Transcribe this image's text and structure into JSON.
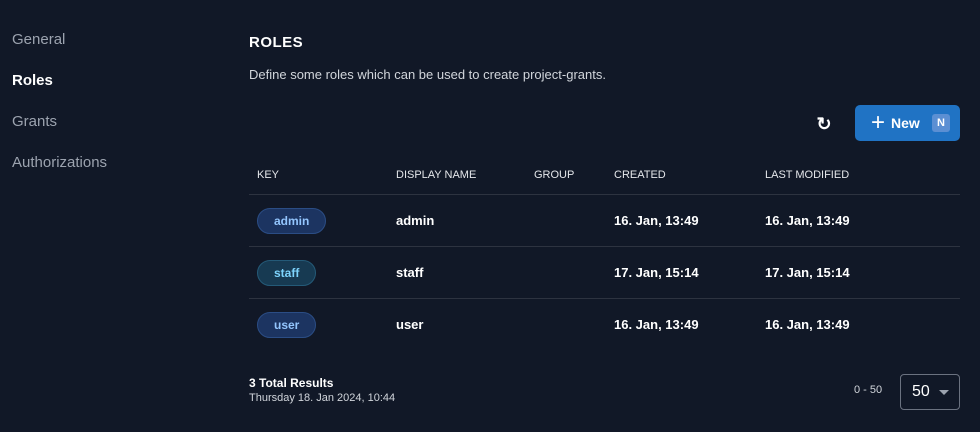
{
  "sidebar": {
    "items": [
      {
        "label": "General"
      },
      {
        "label": "Roles",
        "active": true
      },
      {
        "label": "Grants"
      },
      {
        "label": "Authorizations"
      }
    ]
  },
  "header": {
    "title": "ROLES",
    "description": "Define some roles which can be used to create project-grants."
  },
  "toolbar": {
    "refresh_icon": "refresh-icon",
    "new_label": "New",
    "new_shortcut": "N",
    "accent": "#2073c4"
  },
  "table": {
    "columns": [
      "KEY",
      "DISPLAY NAME",
      "GROUP",
      "CREATED",
      "LAST MODIFIED"
    ],
    "rows": [
      {
        "key": "admin",
        "display_name": "admin",
        "group": "",
        "created": "16. Jan, 13:49",
        "modified": "16. Jan, 13:49"
      },
      {
        "key": "staff",
        "display_name": "staff",
        "group": "",
        "created": "17. Jan, 15:14",
        "modified": "17. Jan, 15:14"
      },
      {
        "key": "user",
        "display_name": "user",
        "group": "",
        "created": "16. Jan, 13:49",
        "modified": "16. Jan, 13:49"
      }
    ]
  },
  "footer": {
    "total": "3 Total Results",
    "timestamp": "Thursday 18. Jan 2024, 10:44",
    "range": "0 - 50",
    "page_size": "50"
  }
}
